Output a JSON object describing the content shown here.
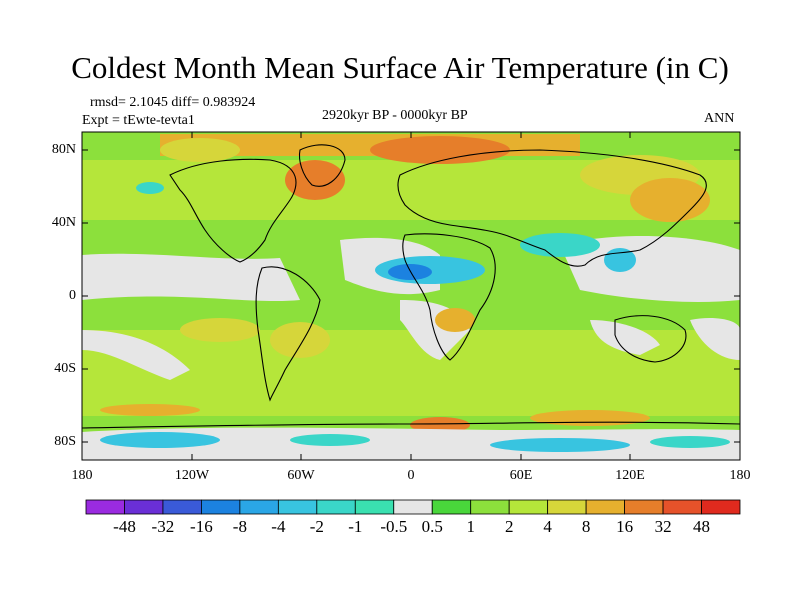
{
  "title": "Coldest Month Mean Surface Air Temperature (in C)",
  "rmsd_line": "rmsd= 2.1045 diff= 0.983924",
  "expt_line": "Expt = tEwte-tevta1",
  "period": "2920kyr BP - 0000kyr BP",
  "season": "ANN",
  "lat_ticks": [
    "80N",
    "40N",
    "0",
    "40S",
    "80S"
  ],
  "lon_ticks": [
    "180",
    "120W",
    "60W",
    "0",
    "60E",
    "120E",
    "180"
  ],
  "colorbar": {
    "labels": [
      "-48",
      "-32",
      "-16",
      "-8",
      "-4",
      "-2",
      "-1",
      "-0.5",
      "0.5",
      "1",
      "2",
      "4",
      "8",
      "16",
      "32",
      "48"
    ],
    "colors": [
      "#9a2be0",
      "#6a2fd6",
      "#3a5ad8",
      "#1c82e0",
      "#2aa6e6",
      "#38c4e0",
      "#3ad6c8",
      "#3ae0b0",
      "#e6e6e6",
      "#49d63b",
      "#8ce03c",
      "#b5e63a",
      "#d6d63a",
      "#e6b02e",
      "#e67e2a",
      "#e6522a",
      "#e02a1e"
    ]
  },
  "colors": {
    "ocean_green": "#8ce03c",
    "land_neutral": "#e6e6e6",
    "warm": "#e6b02e",
    "hot": "#e67e2a",
    "cool": "#38c4e0"
  }
}
